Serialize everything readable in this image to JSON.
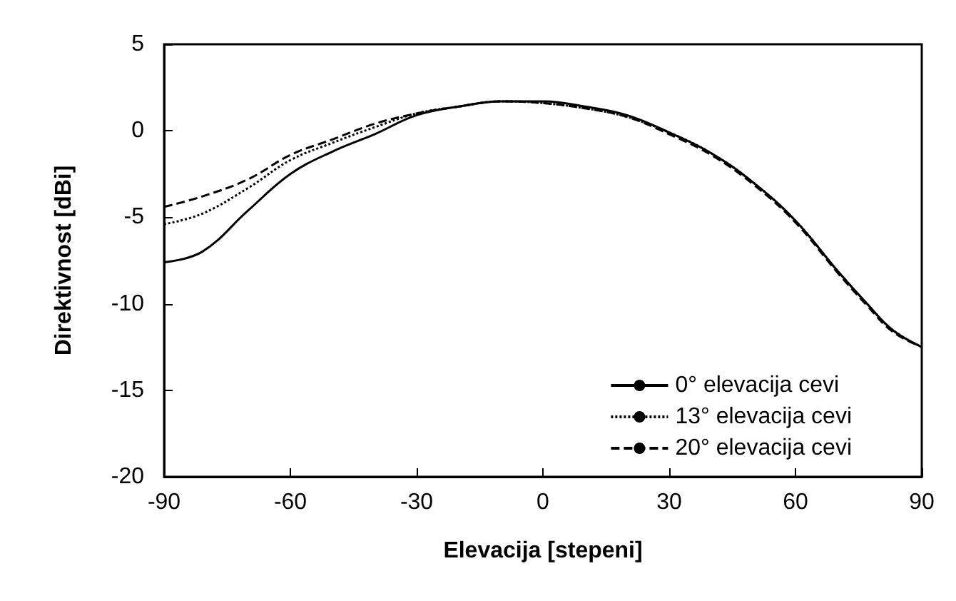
{
  "chart_data": {
    "type": "line",
    "xlabel": "Elevacija [stepeni]",
    "ylabel": "Direktivnost [dBi]",
    "x": [
      -90,
      -81,
      -70,
      -60,
      -50,
      -40,
      -30,
      -20,
      -10,
      0,
      10,
      20,
      30,
      40,
      50,
      60,
      70,
      77,
      83,
      90
    ],
    "series": [
      {
        "name": "0° elevacija cevi",
        "color": "#000000",
        "line_style": "solid",
        "values": [
          -7.6,
          -7.0,
          -4.6,
          -2.5,
          -1.2,
          -0.2,
          0.9,
          1.4,
          1.7,
          1.7,
          1.4,
          0.9,
          -0.1,
          -1.3,
          -3.0,
          -5.2,
          -8.1,
          -10.0,
          -11.5,
          -12.5
        ]
      },
      {
        "name": "13° elevacija cevi",
        "color": "#000000",
        "line_style": "dotted",
        "values": [
          -5.4,
          -4.8,
          -3.3,
          -1.7,
          -0.7,
          0.2,
          1.0,
          1.4,
          1.7,
          1.6,
          1.3,
          0.8,
          -0.1,
          -1.3,
          -3.0,
          -5.2,
          -8.1,
          -10.0,
          -11.5,
          -12.5
        ]
      },
      {
        "name": "20° elevacija cevi",
        "color": "#000000",
        "line_style": "dashed",
        "values": [
          -4.4,
          -3.8,
          -2.8,
          -1.4,
          -0.5,
          0.4,
          1.0,
          1.4,
          1.7,
          1.6,
          1.3,
          0.8,
          -0.2,
          -1.4,
          -3.1,
          -5.3,
          -8.2,
          -10.1,
          -11.6,
          -12.5
        ]
      }
    ],
    "xlim": [
      -90,
      90
    ],
    "xticks": [
      -90,
      -60,
      -30,
      0,
      30,
      60,
      90
    ],
    "ylim": [
      -20,
      5
    ],
    "yticks": [
      -20,
      -15,
      -10,
      -5,
      0,
      5
    ],
    "legend": "bottom right",
    "marker": "none"
  }
}
